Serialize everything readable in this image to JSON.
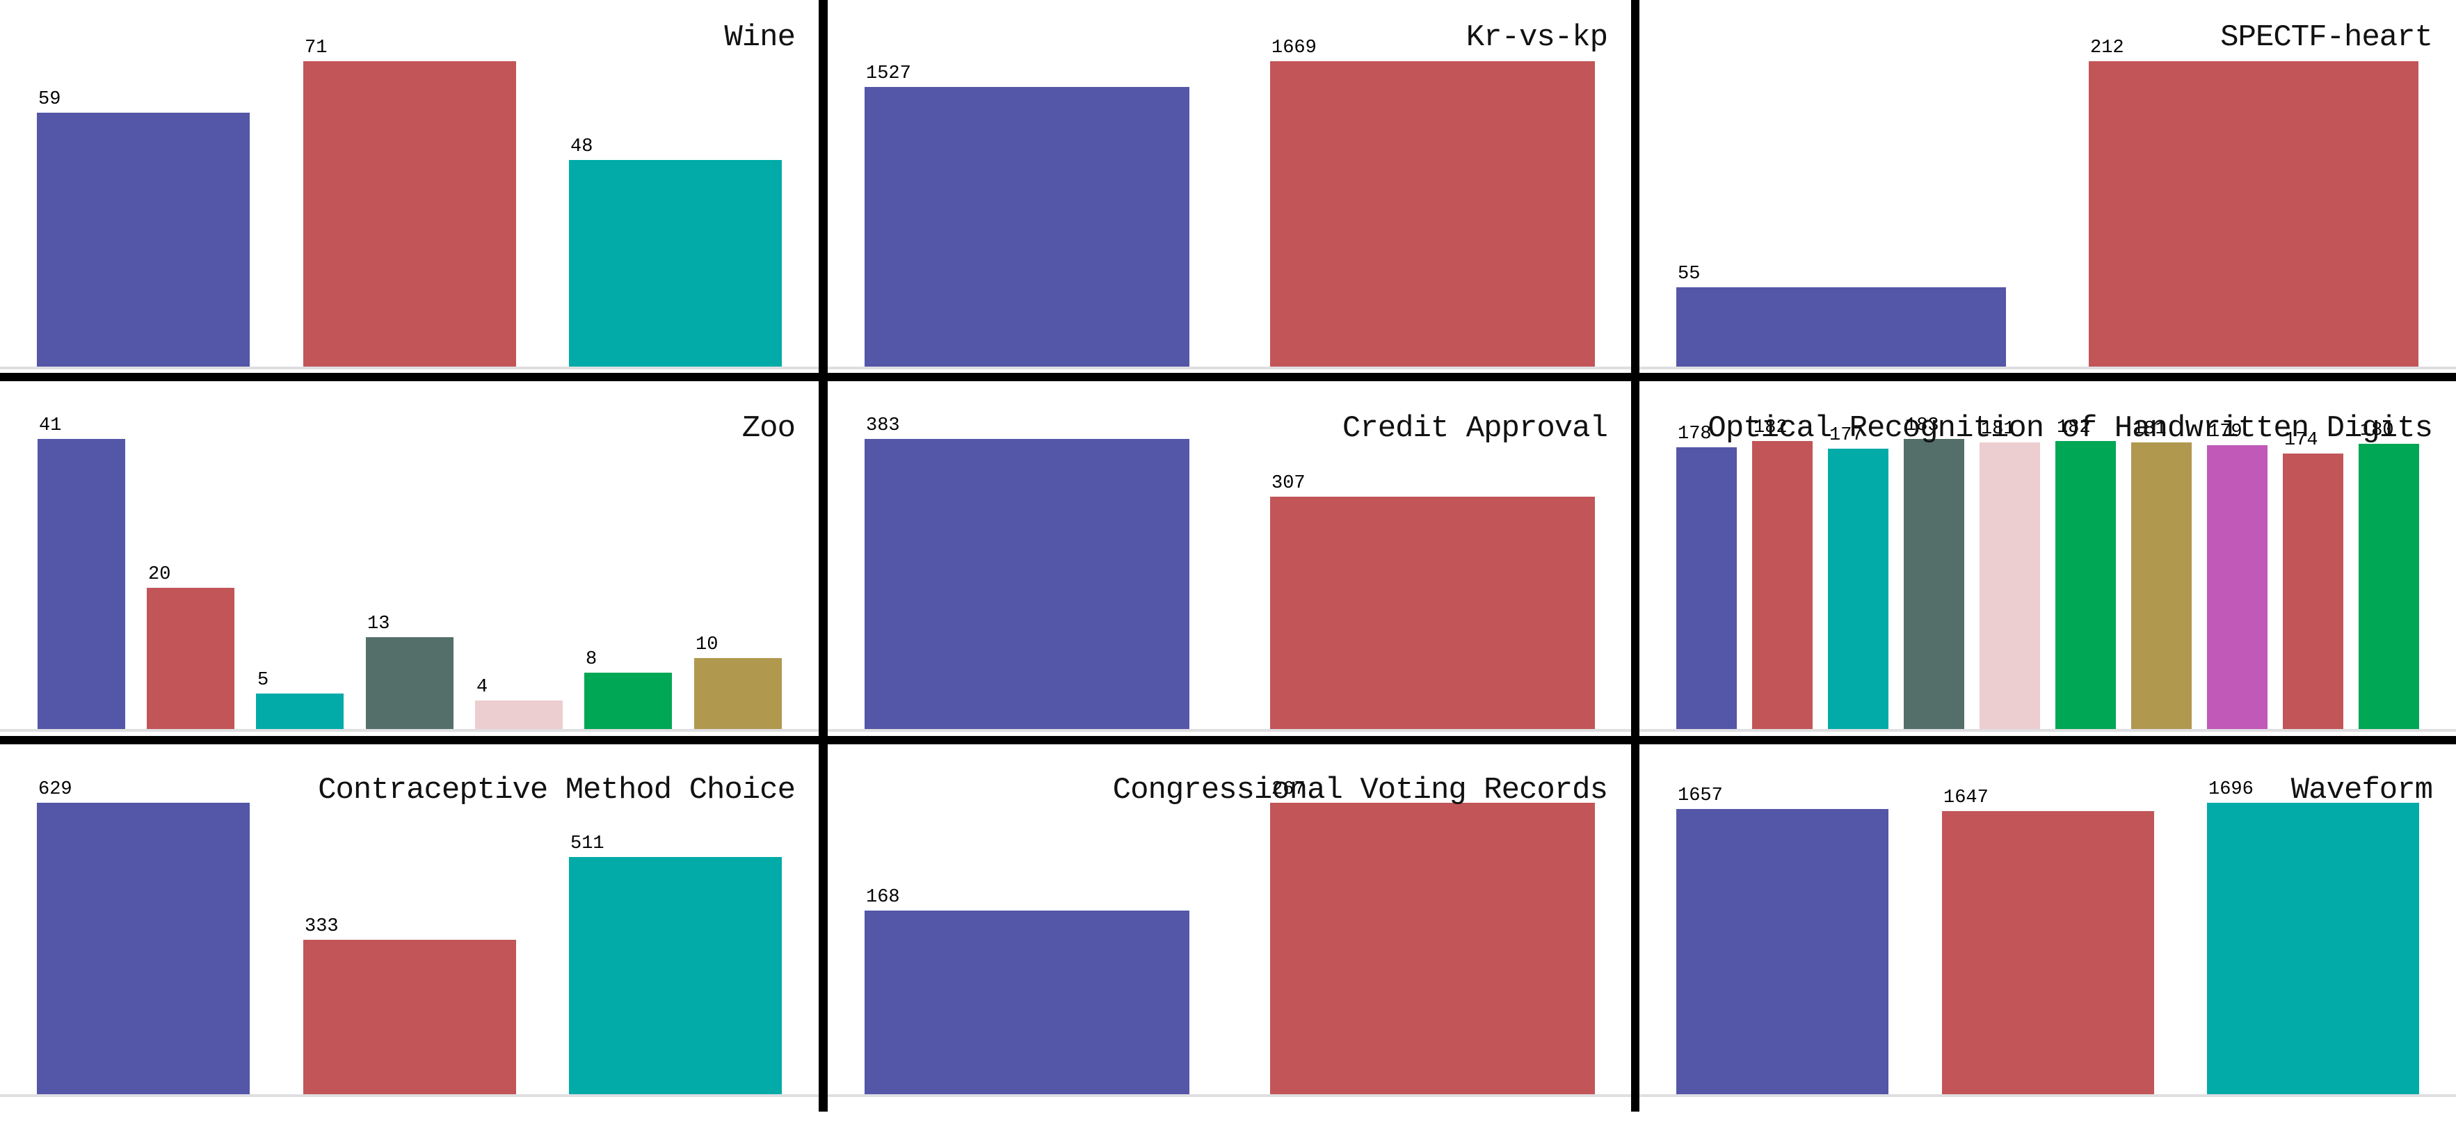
{
  "figure": {
    "background_color": "#ffffff",
    "divider_color": "#000000",
    "axis_line_color": "#dfdfe2",
    "text_color": "#111111"
  },
  "palette": {
    "indigo": "#5456a8",
    "red": "#c25558",
    "teal": "#02aba8",
    "slate": "#546e6a",
    "pink": "#eccdd0",
    "green": "#00a754",
    "gold": "#b0984f",
    "orchid": "#c059b7"
  },
  "chart_data": [
    {
      "type": "bar",
      "title": "Wine",
      "values": [
        59,
        71,
        48
      ],
      "bar_colors": [
        "#5456a8",
        "#c25558",
        "#02aba8"
      ],
      "grid_position": {
        "row": 0,
        "col": 0
      },
      "ylim": [
        0,
        85
      ],
      "grid": "off",
      "legend": "none"
    },
    {
      "type": "bar",
      "title": "Kr-vs-kp",
      "values": [
        1527,
        1669
      ],
      "bar_colors": [
        "#5456a8",
        "#c25558"
      ],
      "grid_position": {
        "row": 0,
        "col": 1
      },
      "ylim": [
        0,
        2000
      ],
      "grid": "off",
      "legend": "none"
    },
    {
      "type": "bar",
      "title": "SPECTF-heart",
      "values": [
        55,
        212
      ],
      "bar_colors": [
        "#5456a8",
        "#c25558"
      ],
      "grid_position": {
        "row": 0,
        "col": 2
      },
      "ylim": [
        0,
        254
      ],
      "grid": "off",
      "legend": "none"
    },
    {
      "type": "bar",
      "title": "Zoo",
      "values": [
        41,
        20,
        5,
        13,
        4,
        8,
        10
      ],
      "bar_colors": [
        "#5456a8",
        "#c25558",
        "#02aba8",
        "#546e6a",
        "#eccdd0",
        "#00a754",
        "#b0984f"
      ],
      "grid_position": {
        "row": 1,
        "col": 0
      },
      "ylim": [
        0,
        49
      ],
      "grid": "off",
      "legend": "none"
    },
    {
      "type": "bar",
      "title": "Credit Approval",
      "values": [
        383,
        307
      ],
      "bar_colors": [
        "#5456a8",
        "#c25558"
      ],
      "grid_position": {
        "row": 1,
        "col": 1
      },
      "ylim": [
        0,
        460
      ],
      "grid": "off",
      "legend": "none"
    },
    {
      "type": "bar",
      "title": "Optical Recognition of Handwritten Digits",
      "values": [
        178,
        182,
        177,
        183,
        181,
        182,
        181,
        179,
        174,
        180
      ],
      "bar_colors": [
        "#5456a8",
        "#c25558",
        "#02aba8",
        "#546e6a",
        "#eccdd0",
        "#00a754",
        "#b0984f",
        "#c059b7",
        "#c25558",
        "#00a754"
      ],
      "grid_position": {
        "row": 1,
        "col": 2
      },
      "ylim": [
        0,
        220
      ],
      "grid": "off",
      "legend": "none"
    },
    {
      "type": "bar",
      "title": "Contraceptive Method Choice",
      "values": [
        629,
        333,
        511
      ],
      "bar_colors": [
        "#5456a8",
        "#c25558",
        "#02aba8"
      ],
      "grid_position": {
        "row": 2,
        "col": 0
      },
      "ylim": [
        0,
        755
      ],
      "grid": "off",
      "legend": "none"
    },
    {
      "type": "bar",
      "title": "Congressional Voting Records",
      "values": [
        168,
        267
      ],
      "bar_colors": [
        "#5456a8",
        "#c25558"
      ],
      "grid_position": {
        "row": 2,
        "col": 1
      },
      "ylim": [
        0,
        320
      ],
      "grid": "off",
      "legend": "none"
    },
    {
      "type": "bar",
      "title": "Waveform",
      "values": [
        1657,
        1647,
        1696
      ],
      "bar_colors": [
        "#5456a8",
        "#c25558",
        "#02aba8"
      ],
      "grid_position": {
        "row": 2,
        "col": 2
      },
      "ylim": [
        0,
        2035
      ],
      "grid": "off",
      "legend": "none"
    }
  ]
}
